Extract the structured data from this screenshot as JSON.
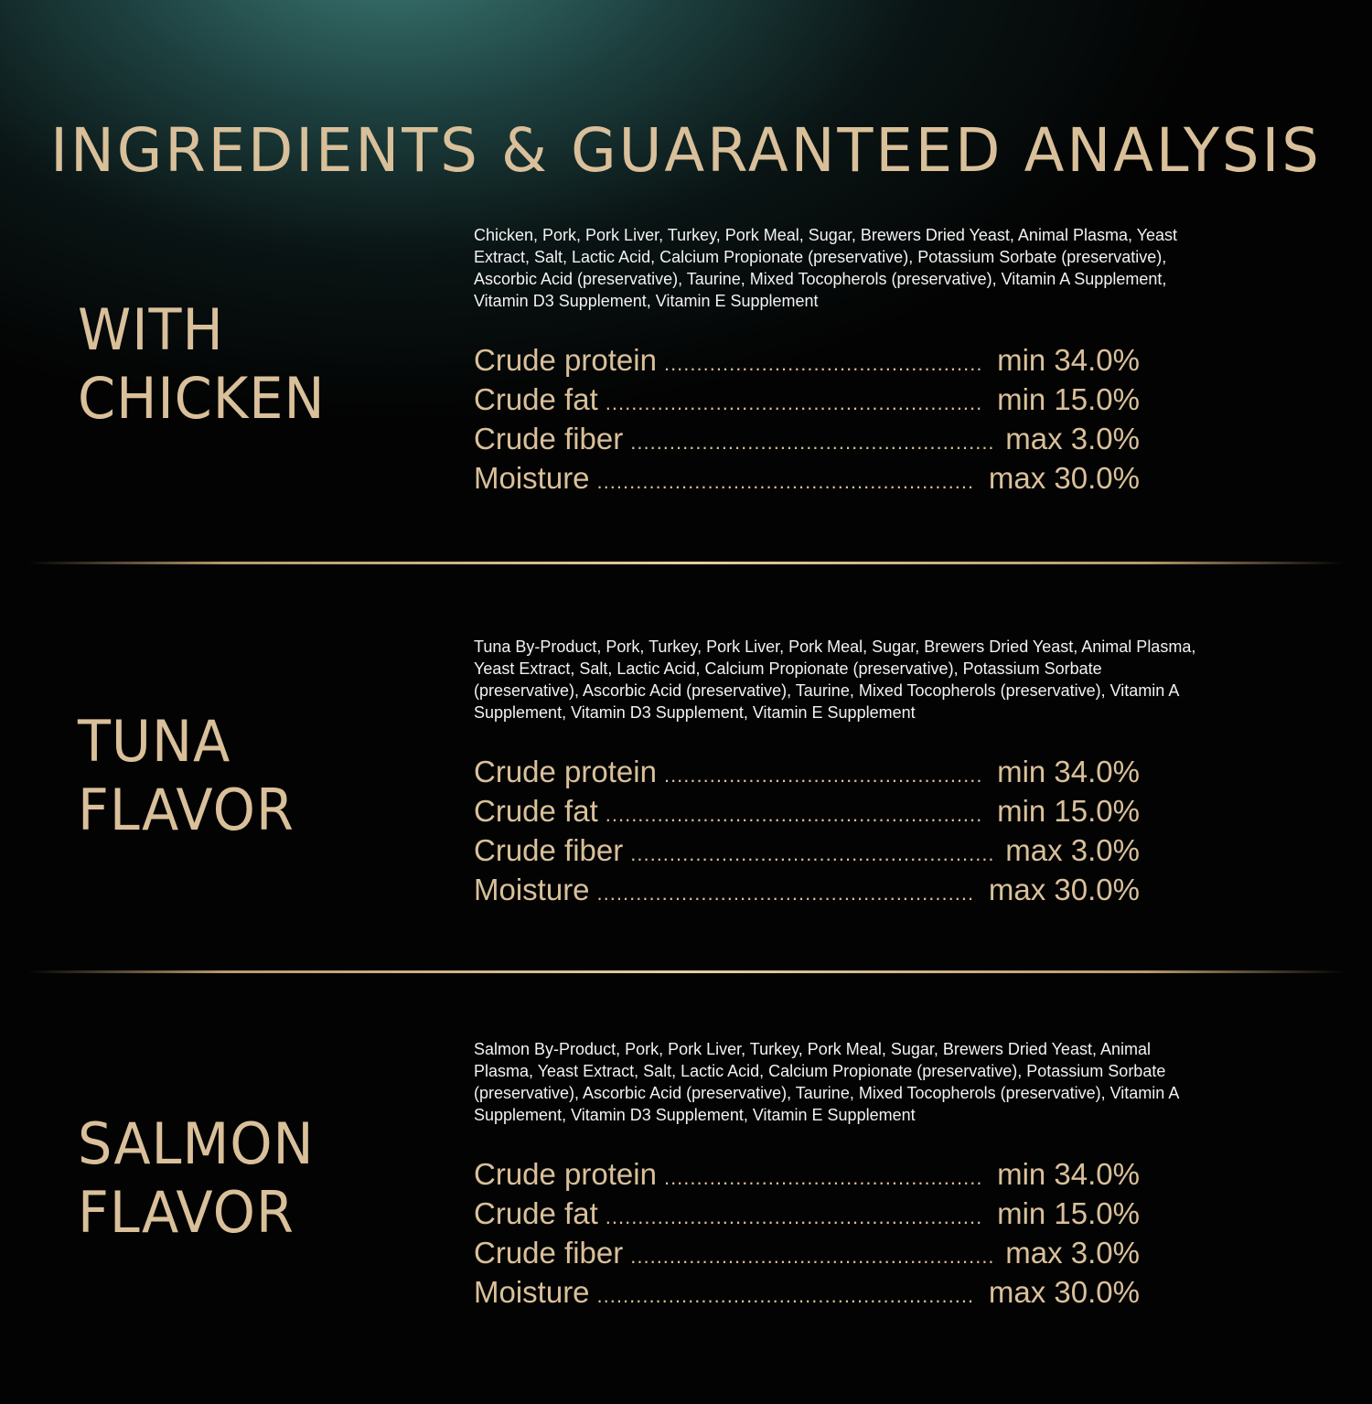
{
  "title": "INGREDIENTS & GUARANTEED ANALYSIS",
  "colors": {
    "gold": "#d9c09a",
    "text": "#f2f2f2",
    "background": "#030303",
    "accent_glow": "#3c7a74"
  },
  "sections": [
    {
      "heading": [
        "WITH",
        "CHICKEN"
      ],
      "ingredients": [
        "Chicken, Pork, Pork Liver, Turkey, Pork Meal, Sugar, Brewers Dried Yeast, Animal Plasma, Yeast",
        "Extract, Salt, Lactic Acid, Calcium Propionate (preservative), Potassium Sorbate (preservative),",
        "Ascorbic Acid (preservative), Taurine, Mixed Tocopherols (preservative), Vitamin A Supplement,",
        "Vitamin D3 Supplement, Vitamin E Supplement"
      ],
      "analysis": [
        {
          "label": "Crude protein",
          "value": "min 34.0%"
        },
        {
          "label": "Crude fat",
          "value": "min 15.0%"
        },
        {
          "label": "Crude fiber",
          "value": "max 3.0%"
        },
        {
          "label": "Moisture",
          "value": "max 30.0%"
        }
      ]
    },
    {
      "heading": [
        "TUNA",
        "FLAVOR"
      ],
      "ingredients": [
        "Tuna By-Product, Pork, Turkey, Pork Liver, Pork Meal, Sugar, Brewers Dried Yeast, Animal Plasma,",
        "Yeast Extract, Salt, Lactic Acid, Calcium Propionate (preservative), Potassium Sorbate",
        "(preservative), Ascorbic Acid (preservative), Taurine, Mixed Tocopherols (preservative), Vitamin A",
        "Supplement, Vitamin D3 Supplement, Vitamin E Supplement"
      ],
      "analysis": [
        {
          "label": "Crude protein",
          "value": "min 34.0%"
        },
        {
          "label": "Crude fat",
          "value": "min 15.0%"
        },
        {
          "label": "Crude fiber",
          "value": "max 3.0%"
        },
        {
          "label": "Moisture",
          "value": "max 30.0%"
        }
      ]
    },
    {
      "heading": [
        "SALMON",
        "FLAVOR"
      ],
      "ingredients": [
        "Salmon By-Product, Pork, Pork Liver, Turkey, Pork Meal, Sugar, Brewers Dried Yeast, Animal",
        "Plasma, Yeast Extract, Salt, Lactic Acid, Calcium Propionate (preservative), Potassium Sorbate",
        "(preservative), Ascorbic Acid (preservative), Taurine, Mixed Tocopherols (preservative), Vitamin A",
        "Supplement, Vitamin D3 Supplement, Vitamin E Supplement"
      ],
      "analysis": [
        {
          "label": "Crude protein",
          "value": "min 34.0%"
        },
        {
          "label": "Crude fat",
          "value": "min 15.0%"
        },
        {
          "label": "Crude fiber",
          "value": "max 3.0%"
        },
        {
          "label": "Moisture",
          "value": "max 30.0%"
        }
      ]
    }
  ]
}
